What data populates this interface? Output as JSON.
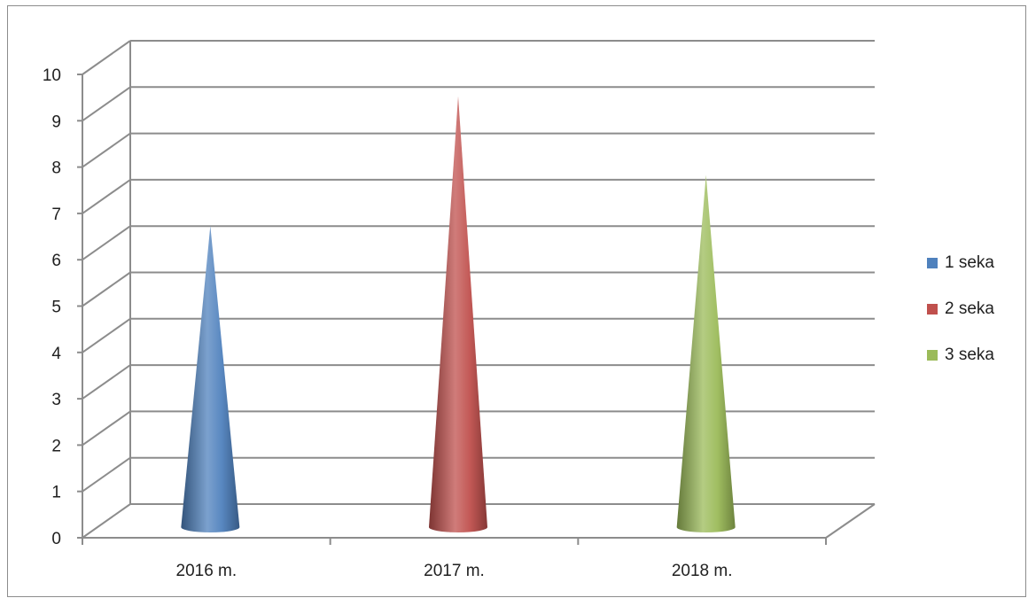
{
  "chart_data": {
    "type": "bar",
    "style": "3d-cone",
    "categories": [
      "2016 m.",
      "2017 m.",
      "2018 m."
    ],
    "series": [
      {
        "name": "1 seka",
        "color": "#4f81bd",
        "values": [
          6.5,
          null,
          null
        ]
      },
      {
        "name": "2 seka",
        "color": "#c0504d",
        "values": [
          null,
          9.3,
          null
        ]
      },
      {
        "name": "3 seka",
        "color": "#9bbb59",
        "values": [
          null,
          null,
          7.6
        ]
      }
    ],
    "ylim": [
      0,
      10
    ],
    "yticks": [
      "0",
      "1",
      "2",
      "3",
      "4",
      "5",
      "6",
      "7",
      "8",
      "9",
      "10"
    ],
    "grid": true,
    "legend_position": "right"
  }
}
